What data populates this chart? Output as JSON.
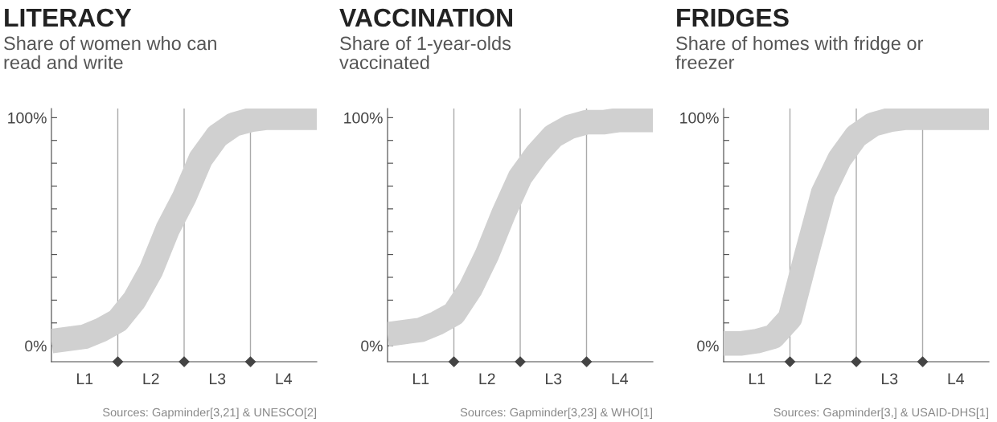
{
  "chart_data": [
    {
      "type": "line",
      "title": "LITERACY",
      "subtitle": "Share of women who can\nread and write",
      "categories": [
        null,
        null,
        "L1",
        null,
        null,
        null,
        "L2",
        null,
        null,
        null,
        "L3",
        null,
        null,
        null,
        "L4",
        null,
        null
      ],
      "series": [
        {
          "color": "#d0d0d0",
          "values": [
            2,
            3,
            4,
            7,
            11,
            20,
            33,
            51,
            65,
            82,
            92,
            97,
            99,
            100,
            100,
            100,
            100
          ]
        }
      ],
      "ylim": [
        -7,
        104
      ],
      "yticks": [
        {
          "value": 0,
          "label": "0%"
        },
        {
          "value": 10,
          "label": null
        },
        {
          "value": 20,
          "label": null
        },
        {
          "value": 30,
          "label": null
        },
        {
          "value": 40,
          "label": null
        },
        {
          "value": 50,
          "label": null
        },
        {
          "value": 60,
          "label": null
        },
        {
          "value": 70,
          "label": null
        },
        {
          "value": 80,
          "label": null
        },
        {
          "value": 90,
          "label": null
        },
        {
          "value": 100,
          "label": "100%"
        }
      ],
      "grid": "x",
      "line_style": "solid",
      "annotations": [
        "Sources: Gapminder[3,21] & UNESCO[2]"
      ]
    },
    {
      "type": "line",
      "title": "VACCINATION",
      "subtitle": "Share of 1-year-olds\nvaccinated",
      "categories": [
        null,
        null,
        "L1",
        null,
        null,
        null,
        "L2",
        null,
        null,
        null,
        "L3",
        null,
        null,
        null,
        "L4",
        null,
        null
      ],
      "series": [
        {
          "color": "#d0d0d0",
          "values": [
            5,
            6,
            7,
            10,
            14,
            25,
            40,
            58,
            74,
            84,
            92,
            96,
            98,
            98,
            99,
            99,
            99
          ]
        }
      ],
      "ylim": [
        -7,
        104
      ],
      "yticks": [
        {
          "value": 0,
          "label": "0%"
        },
        {
          "value": 10,
          "label": null
        },
        {
          "value": 20,
          "label": null
        },
        {
          "value": 30,
          "label": null
        },
        {
          "value": 40,
          "label": null
        },
        {
          "value": 50,
          "label": null
        },
        {
          "value": 60,
          "label": null
        },
        {
          "value": 70,
          "label": null
        },
        {
          "value": 80,
          "label": null
        },
        {
          "value": 90,
          "label": null
        },
        {
          "value": 100,
          "label": "100%"
        }
      ],
      "grid": "x",
      "line_style": "solid",
      "annotations": [
        "Sources: Gapminder[3,23] & WHO[1]"
      ]
    },
    {
      "type": "line",
      "title": "FRIDGES",
      "subtitle": "Share of homes with fridge or\nfreezer",
      "categories": [
        null,
        null,
        "L1",
        null,
        null,
        null,
        "L2",
        null,
        null,
        null,
        "L3",
        null,
        null,
        null,
        "L4",
        null,
        null
      ],
      "series": [
        {
          "color": "#d0d0d0",
          "values": [
            1,
            1,
            2,
            4,
            12,
            40,
            67,
            82,
            92,
            97,
            99,
            100,
            100,
            100,
            100,
            100,
            100
          ]
        }
      ],
      "ylim": [
        -7,
        104
      ],
      "yticks": [
        {
          "value": 0,
          "label": "0%"
        },
        {
          "value": 10,
          "label": null
        },
        {
          "value": 20,
          "label": null
        },
        {
          "value": 30,
          "label": null
        },
        {
          "value": 40,
          "label": null
        },
        {
          "value": 50,
          "label": null
        },
        {
          "value": 60,
          "label": null
        },
        {
          "value": 70,
          "label": null
        },
        {
          "value": 80,
          "label": null
        },
        {
          "value": 90,
          "label": null
        },
        {
          "value": 100,
          "label": "100%"
        }
      ],
      "grid": "x",
      "line_style": "solid",
      "annotations": [
        "Sources: Gapminder[3,] & USAID-DHS[1]"
      ]
    }
  ]
}
